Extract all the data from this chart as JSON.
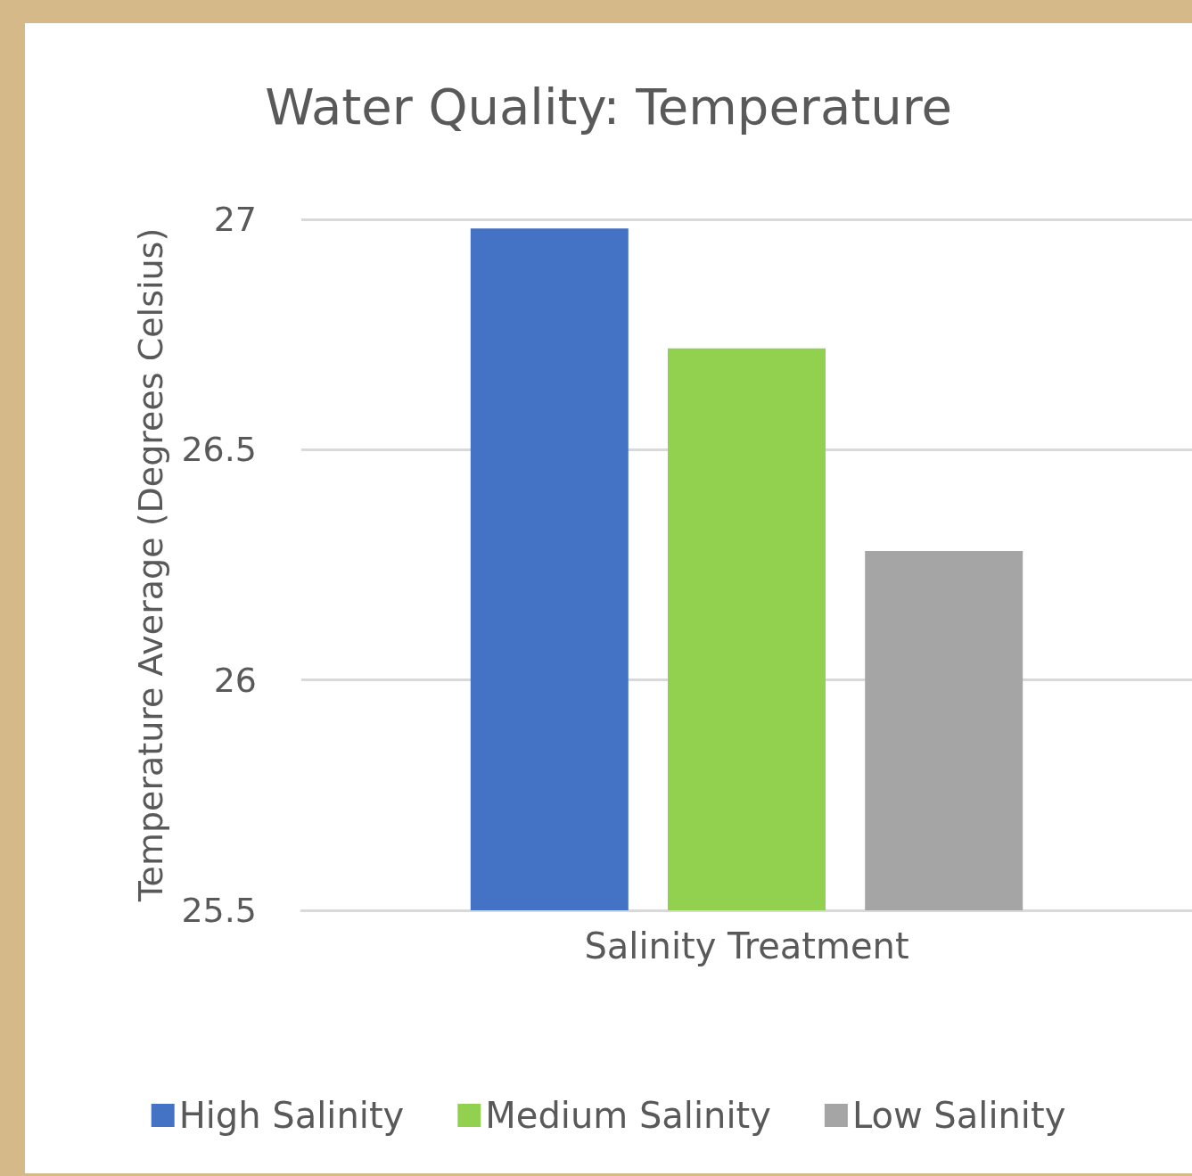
{
  "chart_data": {
    "type": "bar",
    "title": "Water Quality: Temperature",
    "ylabel": "Temperature Average (Degrees Celsius)",
    "categories": [
      "Salinity Treatment"
    ],
    "series": [
      {
        "name": "High Salinity",
        "color": "#4472c4",
        "values": [
          26.98
        ]
      },
      {
        "name": "Medium Salinity",
        "color": "#92d050",
        "values": [
          26.72
        ]
      },
      {
        "name": "Low Salinity",
        "color": "#a5a5a5",
        "values": [
          26.28
        ]
      }
    ],
    "ylim": [
      25.5,
      27
    ],
    "yticks": [
      25.5,
      26,
      26.5,
      27
    ],
    "grid": "y",
    "legend": "bottom"
  }
}
